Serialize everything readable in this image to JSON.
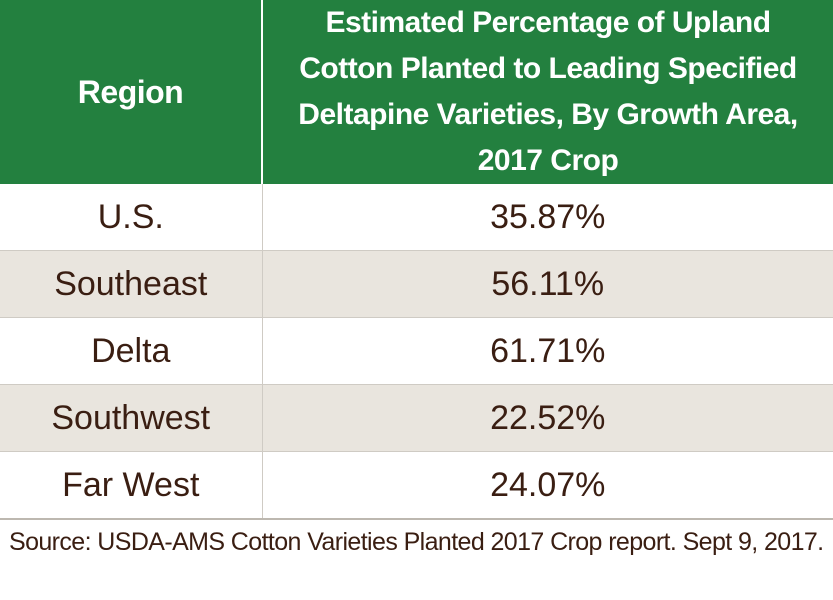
{
  "chart_data": {
    "type": "table",
    "columns": [
      "Region",
      "Estimated Percentage of Upland Cotton Planted to Leading Specified Deltapine Varieties, By Growth Area, 2017 Crop"
    ],
    "rows": [
      {
        "region": "U.S.",
        "value": "35.87%"
      },
      {
        "region": "Southeast",
        "value": "56.11%"
      },
      {
        "region": "Delta",
        "value": "61.71%"
      },
      {
        "region": "Southwest",
        "value": "22.52%"
      },
      {
        "region": "Far West",
        "value": "24.07%"
      }
    ],
    "values": [
      35.87,
      56.11,
      61.71,
      22.52,
      24.07
    ],
    "unit": "%",
    "source": "Source: USDA-AMS Cotton Varieties Planted 2017 Crop report. Sept 9, 2017."
  },
  "colors": {
    "header_bg": "#23803f",
    "header_text": "#ffffff",
    "body_text": "#3a1e12",
    "shaded_row": "#e9e5de"
  }
}
